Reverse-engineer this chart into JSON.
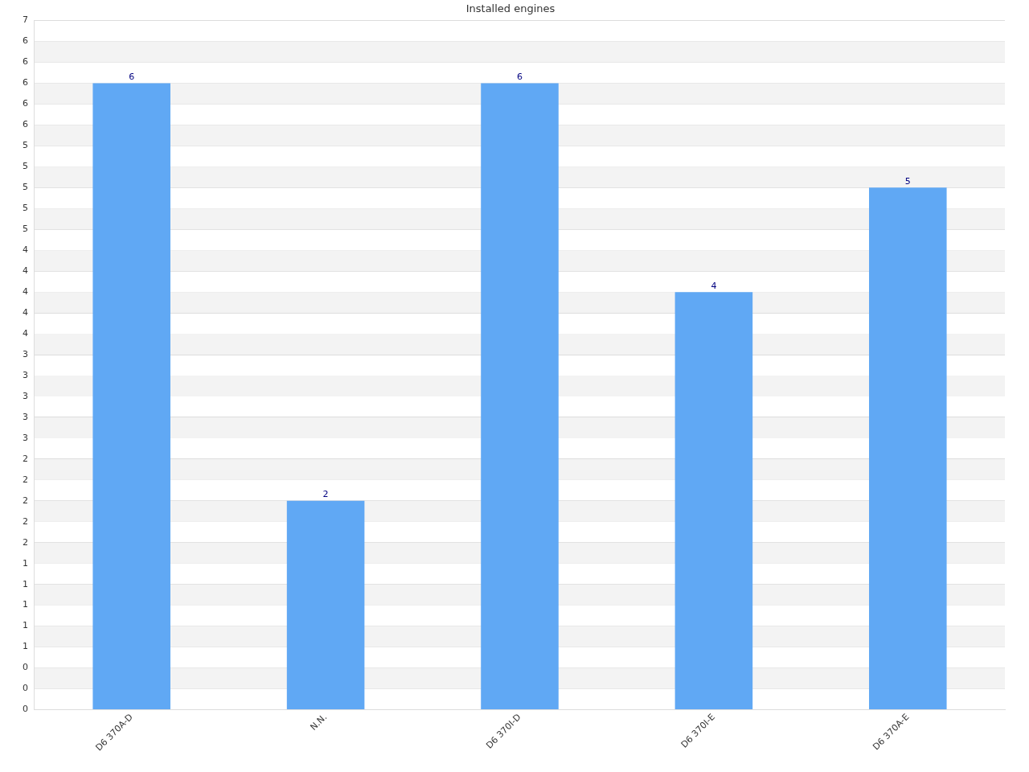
{
  "chart_data": {
    "type": "bar",
    "title": "Installed engines",
    "categories": [
      "D6 370A-D",
      "N.N.",
      "D6 370I-D",
      "D6 370I-E",
      "D6 370A-E"
    ],
    "values": [
      6,
      2,
      6,
      4,
      5
    ],
    "color": "#60a8f4",
    "data_labels": true,
    "grid": true,
    "legend": false,
    "ylim": [
      0,
      6.6
    ],
    "yticks": [
      {
        "value": 0,
        "label": "0"
      },
      {
        "value": 0.2,
        "label": "0"
      },
      {
        "value": 0.4,
        "label": "0"
      },
      {
        "value": 0.6,
        "label": "1"
      },
      {
        "value": 0.8,
        "label": "1"
      },
      {
        "value": 1,
        "label": "1"
      },
      {
        "value": 1.2,
        "label": "1"
      },
      {
        "value": 1.4,
        "label": "1"
      },
      {
        "value": 1.6,
        "label": "2"
      },
      {
        "value": 1.8,
        "label": "2"
      },
      {
        "value": 2,
        "label": "2"
      },
      {
        "value": 2.2,
        "label": "2"
      },
      {
        "value": 2.4,
        "label": "2"
      },
      {
        "value": 2.6,
        "label": "3"
      },
      {
        "value": 2.8,
        "label": "3"
      },
      {
        "value": 3,
        "label": "3"
      },
      {
        "value": 3.2,
        "label": "3"
      },
      {
        "value": 3.4,
        "label": "3"
      },
      {
        "value": 3.6,
        "label": "4"
      },
      {
        "value": 3.8,
        "label": "4"
      },
      {
        "value": 4,
        "label": "4"
      },
      {
        "value": 4.2,
        "label": "4"
      },
      {
        "value": 4.4,
        "label": "4"
      },
      {
        "value": 4.6,
        "label": "5"
      },
      {
        "value": 4.8,
        "label": "5"
      },
      {
        "value": 5,
        "label": "5"
      },
      {
        "value": 5.2,
        "label": "5"
      },
      {
        "value": 5.4,
        "label": "5"
      },
      {
        "value": 5.6,
        "label": "6"
      },
      {
        "value": 5.8,
        "label": "6"
      },
      {
        "value": 6,
        "label": "6"
      },
      {
        "value": 6.2,
        "label": "6"
      },
      {
        "value": 6.4,
        "label": "6"
      },
      {
        "value": 6.6,
        "label": "7"
      }
    ]
  }
}
